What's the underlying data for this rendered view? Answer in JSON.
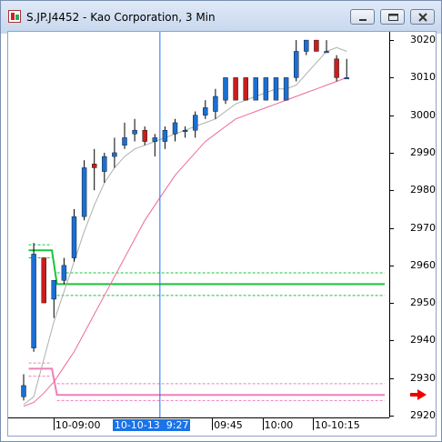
{
  "window": {
    "title": "S.JP.J4452 - Kao Corporation, 3 Min",
    "minimize_icon": "minimize-icon",
    "maximize_icon": "maximize-icon",
    "close_icon": "close-icon"
  },
  "chart_data": {
    "type": "candlestick",
    "symbol": "S.JP.J4452",
    "company": "Kao Corporation",
    "interval": "3 Min",
    "y_ticks": [
      2920,
      2930,
      2940,
      2950,
      2960,
      2970,
      2980,
      2990,
      3000,
      3010,
      3020
    ],
    "ylim": [
      2919.5,
      3022.2
    ],
    "x_labels": [
      {
        "text": "10-09:00",
        "slot": 3.5
      },
      {
        "text": "09:45",
        "slot": 19.2
      },
      {
        "text": "10:00",
        "slot": 24.2
      },
      {
        "text": "10-10:15",
        "slot": 29.2
      }
    ],
    "cursor_label": "10-10-13  9:27",
    "cursor_slot": 13.5,
    "candles": [
      {
        "o": 2925,
        "h": 2931,
        "l": 2924,
        "c": 2928
      },
      {
        "o": 2938,
        "h": 2966,
        "l": 2937,
        "c": 2963
      },
      {
        "o": 2962,
        "h": 2962,
        "l": 2950,
        "c": 2950
      },
      {
        "o": 2951,
        "h": 2956,
        "l": 2946,
        "c": 2956
      },
      {
        "o": 2956,
        "h": 2962,
        "l": 2955,
        "c": 2960
      },
      {
        "o": 2962,
        "h": 2975,
        "l": 2961,
        "c": 2973
      },
      {
        "o": 2973,
        "h": 2988,
        "l": 2972,
        "c": 2986
      },
      {
        "o": 2987,
        "h": 2991,
        "l": 2980,
        "c": 2986
      },
      {
        "o": 2985,
        "h": 2990,
        "l": 2982,
        "c": 2989
      },
      {
        "o": 2989,
        "h": 2994,
        "l": 2986,
        "c": 2990
      },
      {
        "o": 2992,
        "h": 2998,
        "l": 2991,
        "c": 2994
      },
      {
        "o": 2995,
        "h": 2999,
        "l": 2993,
        "c": 2996
      },
      {
        "o": 2996,
        "h": 2997,
        "l": 2992,
        "c": 2993
      },
      {
        "o": 2993,
        "h": 2995,
        "l": 2989,
        "c": 2994
      },
      {
        "o": 2993,
        "h": 2997,
        "l": 2991,
        "c": 2996
      },
      {
        "o": 2995,
        "h": 2999,
        "l": 2993,
        "c": 2998
      },
      {
        "o": 2996,
        "h": 2997,
        "l": 2994,
        "c": 2996
      },
      {
        "o": 2996,
        "h": 3001,
        "l": 2994,
        "c": 3000
      },
      {
        "o": 3000,
        "h": 3004,
        "l": 2999,
        "c": 3002
      },
      {
        "o": 3001,
        "h": 3007,
        "l": 2999,
        "c": 3005
      },
      {
        "o": 3004,
        "h": 3010,
        "l": 3003,
        "c": 3010
      },
      {
        "o": 3010,
        "h": 3010,
        "l": 3004,
        "c": 3004
      },
      {
        "o": 3010,
        "h": 3010,
        "l": 3004,
        "c": 3004
      },
      {
        "o": 3004,
        "h": 3010,
        "l": 3004,
        "c": 3010
      },
      {
        "o": 3004,
        "h": 3010,
        "l": 3004,
        "c": 3010
      },
      {
        "o": 3004,
        "h": 3010,
        "l": 3004,
        "c": 3010
      },
      {
        "o": 3004,
        "h": 3010,
        "l": 3004,
        "c": 3010
      },
      {
        "o": 3010,
        "h": 3020,
        "l": 3009,
        "c": 3017
      },
      {
        "o": 3017,
        "h": 3020,
        "l": 3016,
        "c": 3020
      },
      {
        "o": 3020,
        "h": 3020,
        "l": 3017,
        "c": 3017
      },
      {
        "o": 3017,
        "h": 3020,
        "l": 3017,
        "c": 3017
      },
      {
        "o": 3015,
        "h": 3016,
        "l": 3009,
        "c": 3010
      },
      {
        "o": 3010,
        "h": 3015,
        "l": 3010,
        "c": 3010
      }
    ],
    "ma_fast": [
      2923,
      2925,
      2935,
      2945,
      2953,
      2961,
      2969,
      2976,
      2982,
      2986,
      2989,
      2991,
      2992,
      2993,
      2994,
      2995,
      2996,
      2997,
      2998,
      2999,
      3001,
      3003,
      3004,
      3005,
      3006,
      3007,
      3007,
      3008,
      3011,
      3014,
      3017,
      3018,
      3017
    ],
    "ma_slow": [
      2922.5,
      2923.5,
      2926,
      2929,
      2933,
      2937,
      2942,
      2947,
      2952,
      2957,
      2962,
      2967,
      2972,
      2976,
      2980,
      2984,
      2987,
      2990,
      2993,
      2995,
      2997,
      2999,
      3000,
      3001,
      3002,
      3003,
      3004,
      3005,
      3006,
      3007,
      3008,
      3009,
      3010
    ],
    "green_levels": {
      "before": {
        "upper": 2965.5,
        "mid": 2964,
        "lower": 2962,
        "start_slot": 0.5,
        "end_slot": 2.8
      },
      "after": {
        "upper": 2958,
        "mid": 2955,
        "lower": 2952,
        "start_slot": 3.3,
        "end_slot": 36.5
      }
    },
    "pink_levels": {
      "before": {
        "upper": 2934,
        "mid": 2932.5,
        "lower": 2930.5,
        "start_slot": 0.5,
        "end_slot": 2.8
      },
      "after": {
        "upper": 2928.5,
        "mid": 2925.5,
        "lower": 2924,
        "start_slot": 3.3,
        "end_slot": 36.5
      }
    },
    "colors": {
      "up": "#1c6fd1",
      "down": "#c81e1e",
      "ma_fast": "#a9b3a9",
      "ma_slow": "#ee6a9a",
      "green": "#19c43a",
      "pink": "#f07fb8",
      "cursor": "#1a73e8"
    }
  }
}
